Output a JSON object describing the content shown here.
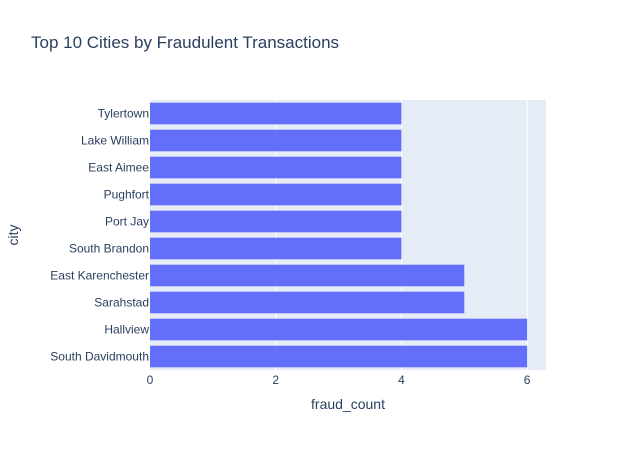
{
  "chart_data": {
    "type": "bar",
    "orientation": "horizontal",
    "title": "Top 10 Cities by Fraudulent Transactions",
    "xlabel": "fraud_count",
    "ylabel": "city",
    "categories": [
      "South Davidmouth",
      "Hallview",
      "Sarahstad",
      "East Karenchester",
      "South Brandon",
      "Port Jay",
      "Pughfort",
      "East Aimee",
      "Lake William",
      "Tylertown"
    ],
    "values": [
      6,
      6,
      5,
      5,
      4,
      4,
      4,
      4,
      4,
      4
    ],
    "xlim": [
      0,
      6.3
    ],
    "xticks": [
      0,
      2,
      4,
      6
    ],
    "grid": true,
    "colors": {
      "bar": "#636efa",
      "plot_bg": "#e5ecf6",
      "grid": "#ffffff",
      "text": "#2a3f5f"
    }
  }
}
